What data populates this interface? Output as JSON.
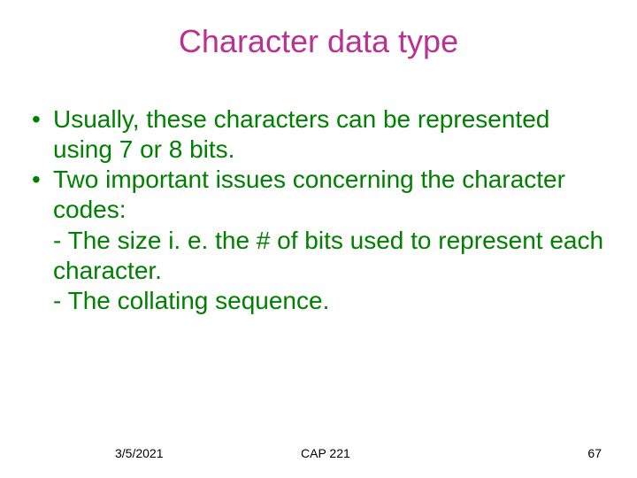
{
  "title": {
    "text": "Character data type",
    "color": "#b83292",
    "fontsize": 36
  },
  "body": {
    "color": "#008000",
    "fontsize": 28,
    "bullets": [
      "Usually, these characters can be represented using 7 or 8 bits.",
      "Two important issues concerning the character codes:"
    ],
    "sublines": [
      "  - The size i. e. the # of bits used to represent each character.",
      "  - The collating sequence."
    ]
  },
  "footer": {
    "date": "3/5/2021",
    "course": "CAP 221",
    "page": "67",
    "color": "#000000",
    "fontsize": 14
  },
  "background_color": "#ffffff"
}
